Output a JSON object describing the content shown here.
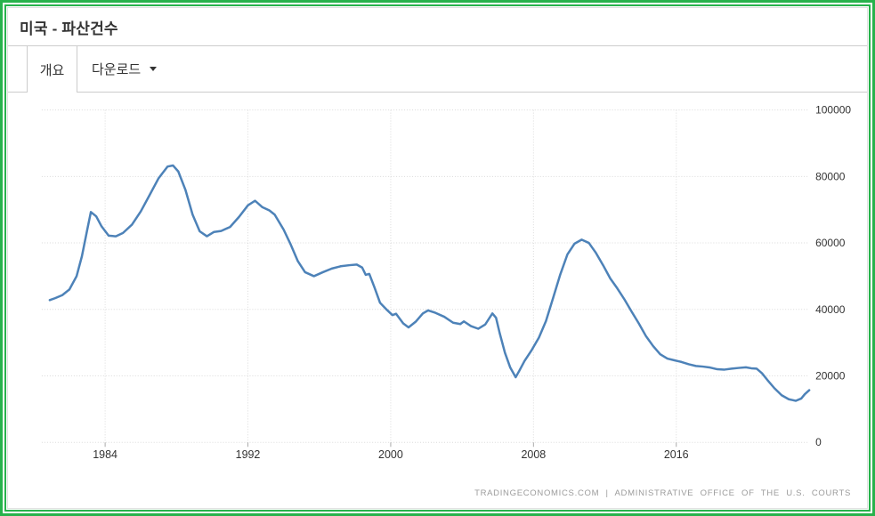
{
  "page": {
    "frame_color": "#27b24c"
  },
  "header": {
    "title": "미국 - 파산건수"
  },
  "tabs": [
    {
      "label": "개요",
      "active": true
    },
    {
      "label": "다운로드",
      "active": false,
      "has_caret": true
    }
  ],
  "footer": {
    "attribution": "TRADINGECONOMICS.COM | ADMINISTRATIVE OFFICE OF THE U.S. COURTS"
  },
  "chart_data": {
    "type": "line",
    "title": "미국 - 파산건수",
    "xlabel": "",
    "ylabel": "",
    "x_ticks": [
      1984,
      1992,
      2000,
      2008,
      2016
    ],
    "y_ticks": [
      0,
      20000,
      40000,
      60000,
      80000,
      100000
    ],
    "xlim": [
      1980.45,
      2023.45
    ],
    "ylim": [
      0,
      100000
    ],
    "grid": "dotted",
    "grid_color": "#dadada",
    "axis_text_color": "#333333",
    "y_axis_position": "right",
    "legend": "none",
    "series": [
      {
        "name": "파산건수",
        "color": "#4d82b8",
        "line_width": 2.5,
        "points": [
          [
            1980.9,
            42800
          ],
          [
            1981.2,
            43400
          ],
          [
            1981.6,
            44300
          ],
          [
            1982.0,
            46000
          ],
          [
            1982.4,
            50000
          ],
          [
            1982.7,
            56000
          ],
          [
            1983.0,
            64000
          ],
          [
            1983.2,
            69300
          ],
          [
            1983.5,
            68000
          ],
          [
            1983.8,
            65000
          ],
          [
            1984.2,
            62200
          ],
          [
            1984.6,
            62000
          ],
          [
            1985.0,
            63000
          ],
          [
            1985.5,
            65500
          ],
          [
            1986.0,
            69500
          ],
          [
            1986.5,
            74500
          ],
          [
            1987.0,
            79500
          ],
          [
            1987.5,
            83000
          ],
          [
            1987.8,
            83300
          ],
          [
            1988.1,
            81500
          ],
          [
            1988.5,
            76000
          ],
          [
            1988.9,
            68500
          ],
          [
            1989.3,
            63500
          ],
          [
            1989.7,
            62000
          ],
          [
            1990.1,
            63300
          ],
          [
            1990.5,
            63600
          ],
          [
            1991.0,
            64800
          ],
          [
            1991.5,
            67800
          ],
          [
            1992.0,
            71300
          ],
          [
            1992.4,
            72700
          ],
          [
            1992.8,
            70800
          ],
          [
            1993.2,
            69800
          ],
          [
            1993.5,
            68500
          ],
          [
            1994.0,
            64000
          ],
          [
            1994.4,
            59500
          ],
          [
            1994.8,
            54500
          ],
          [
            1995.2,
            51200
          ],
          [
            1995.7,
            50000
          ],
          [
            1996.2,
            51200
          ],
          [
            1996.7,
            52300
          ],
          [
            1997.2,
            53000
          ],
          [
            1997.7,
            53300
          ],
          [
            1998.1,
            53500
          ],
          [
            1998.4,
            52600
          ],
          [
            1998.6,
            50400
          ],
          [
            1998.8,
            50700
          ],
          [
            1999.1,
            46500
          ],
          [
            1999.4,
            42000
          ],
          [
            1999.8,
            39800
          ],
          [
            2000.1,
            38300
          ],
          [
            2000.3,
            38700
          ],
          [
            2000.7,
            35800
          ],
          [
            2001.0,
            34600
          ],
          [
            2001.4,
            36300
          ],
          [
            2001.8,
            38800
          ],
          [
            2002.1,
            39700
          ],
          [
            2002.5,
            39000
          ],
          [
            2003.0,
            37800
          ],
          [
            2003.5,
            36000
          ],
          [
            2003.9,
            35600
          ],
          [
            2004.1,
            36400
          ],
          [
            2004.5,
            35000
          ],
          [
            2004.9,
            34200
          ],
          [
            2005.3,
            35500
          ],
          [
            2005.7,
            38800
          ],
          [
            2005.9,
            37500
          ],
          [
            2006.1,
            33000
          ],
          [
            2006.4,
            27000
          ],
          [
            2006.7,
            22500
          ],
          [
            2007.0,
            19600
          ],
          [
            2007.2,
            21500
          ],
          [
            2007.5,
            24500
          ],
          [
            2007.9,
            27800
          ],
          [
            2008.3,
            31500
          ],
          [
            2008.7,
            36500
          ],
          [
            2009.1,
            43500
          ],
          [
            2009.5,
            50500
          ],
          [
            2009.9,
            56500
          ],
          [
            2010.3,
            59800
          ],
          [
            2010.7,
            61000
          ],
          [
            2011.1,
            60000
          ],
          [
            2011.5,
            57000
          ],
          [
            2011.9,
            53300
          ],
          [
            2012.3,
            49300
          ],
          [
            2012.7,
            46300
          ],
          [
            2013.1,
            43000
          ],
          [
            2013.5,
            39300
          ],
          [
            2013.9,
            35800
          ],
          [
            2014.3,
            32000
          ],
          [
            2014.7,
            29000
          ],
          [
            2015.1,
            26500
          ],
          [
            2015.5,
            25200
          ],
          [
            2015.9,
            24700
          ],
          [
            2016.3,
            24200
          ],
          [
            2016.7,
            23500
          ],
          [
            2017.1,
            23000
          ],
          [
            2017.5,
            22800
          ],
          [
            2017.9,
            22500
          ],
          [
            2018.3,
            22000
          ],
          [
            2018.7,
            21900
          ],
          [
            2019.1,
            22200
          ],
          [
            2019.5,
            22400
          ],
          [
            2019.9,
            22600
          ],
          [
            2020.2,
            22300
          ],
          [
            2020.5,
            22200
          ],
          [
            2020.8,
            20800
          ],
          [
            2021.1,
            18800
          ],
          [
            2021.5,
            16300
          ],
          [
            2021.9,
            14200
          ],
          [
            2022.3,
            13000
          ],
          [
            2022.7,
            12500
          ],
          [
            2023.0,
            13200
          ],
          [
            2023.2,
            14500
          ],
          [
            2023.45,
            15700
          ]
        ]
      }
    ]
  }
}
